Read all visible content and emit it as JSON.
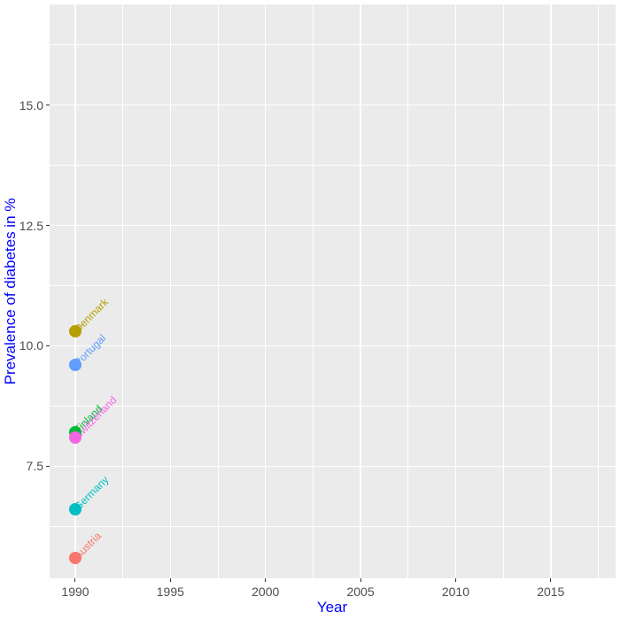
{
  "chart_data": {
    "type": "scatter",
    "title": "",
    "xlabel": "Year",
    "ylabel": "Prevalence of diabetes in %",
    "x_breaks": [
      1990,
      1995,
      2000,
      2005,
      2010,
      2015
    ],
    "x_tick_labels": [
      "1990",
      "1995",
      "2000",
      "2005",
      "2010",
      "2015"
    ],
    "x_minor_breaks": [
      1992.5,
      1997.5,
      2002.5,
      2007.5,
      2012.5,
      2017.5
    ],
    "y_breaks": [
      7.5,
      10.0,
      12.5,
      15.0
    ],
    "y_tick_labels": [
      "7.5",
      "10.0",
      "12.5",
      "15.0"
    ],
    "y_minor_breaks": [
      6.25,
      8.75,
      11.25,
      13.75,
      16.25
    ],
    "xlim": [
      1988.65,
      2018.41
    ],
    "ylim": [
      5.17,
      17.09
    ],
    "grid": true,
    "legend_position": "none",
    "point_shape": "circle",
    "annotation_style": "country name labels rotated 45 degrees at each point",
    "series": [
      {
        "name": "Austria",
        "color": "#F8766D",
        "points": [
          {
            "x": 1990,
            "y": 5.6
          }
        ]
      },
      {
        "name": "Denmark",
        "color": "#B79F00",
        "points": [
          {
            "x": 1990,
            "y": 10.3
          }
        ]
      },
      {
        "name": "Finland",
        "color": "#00BA38",
        "points": [
          {
            "x": 1990,
            "y": 8.2
          }
        ]
      },
      {
        "name": "Germany",
        "color": "#00BFC4",
        "points": [
          {
            "x": 1990,
            "y": 6.6
          }
        ]
      },
      {
        "name": "Portugal",
        "color": "#619CFF",
        "points": [
          {
            "x": 1990,
            "y": 9.6
          }
        ]
      },
      {
        "name": "Switzerland",
        "color": "#F564E3",
        "points": [
          {
            "x": 1990,
            "y": 8.1
          }
        ]
      }
    ]
  },
  "styles": {
    "figure_bg": "#FFFFFF",
    "panel_bg": "#EBEBEB",
    "grid_color": "#FFFFFF",
    "tick_mark_color": "#333333",
    "tick_label_color": "#4D4D4D",
    "axis_title_color": "#0000FF"
  }
}
